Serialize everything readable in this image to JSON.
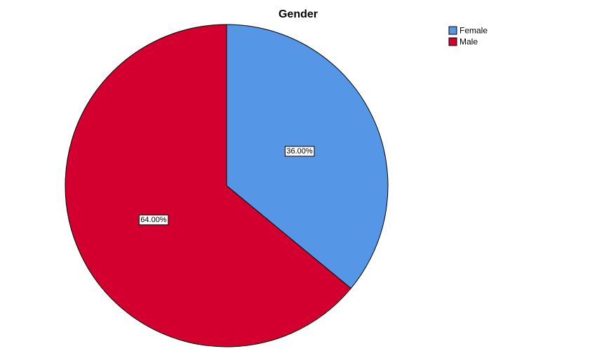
{
  "chart_data": {
    "type": "pie",
    "title": "Gender",
    "categories": [
      "Female",
      "Male"
    ],
    "values": [
      36,
      64
    ],
    "value_labels": [
      "36.00%",
      "64.00%"
    ],
    "colors": [
      "#5596e6",
      "#d3002f"
    ],
    "legend": "top-right"
  }
}
